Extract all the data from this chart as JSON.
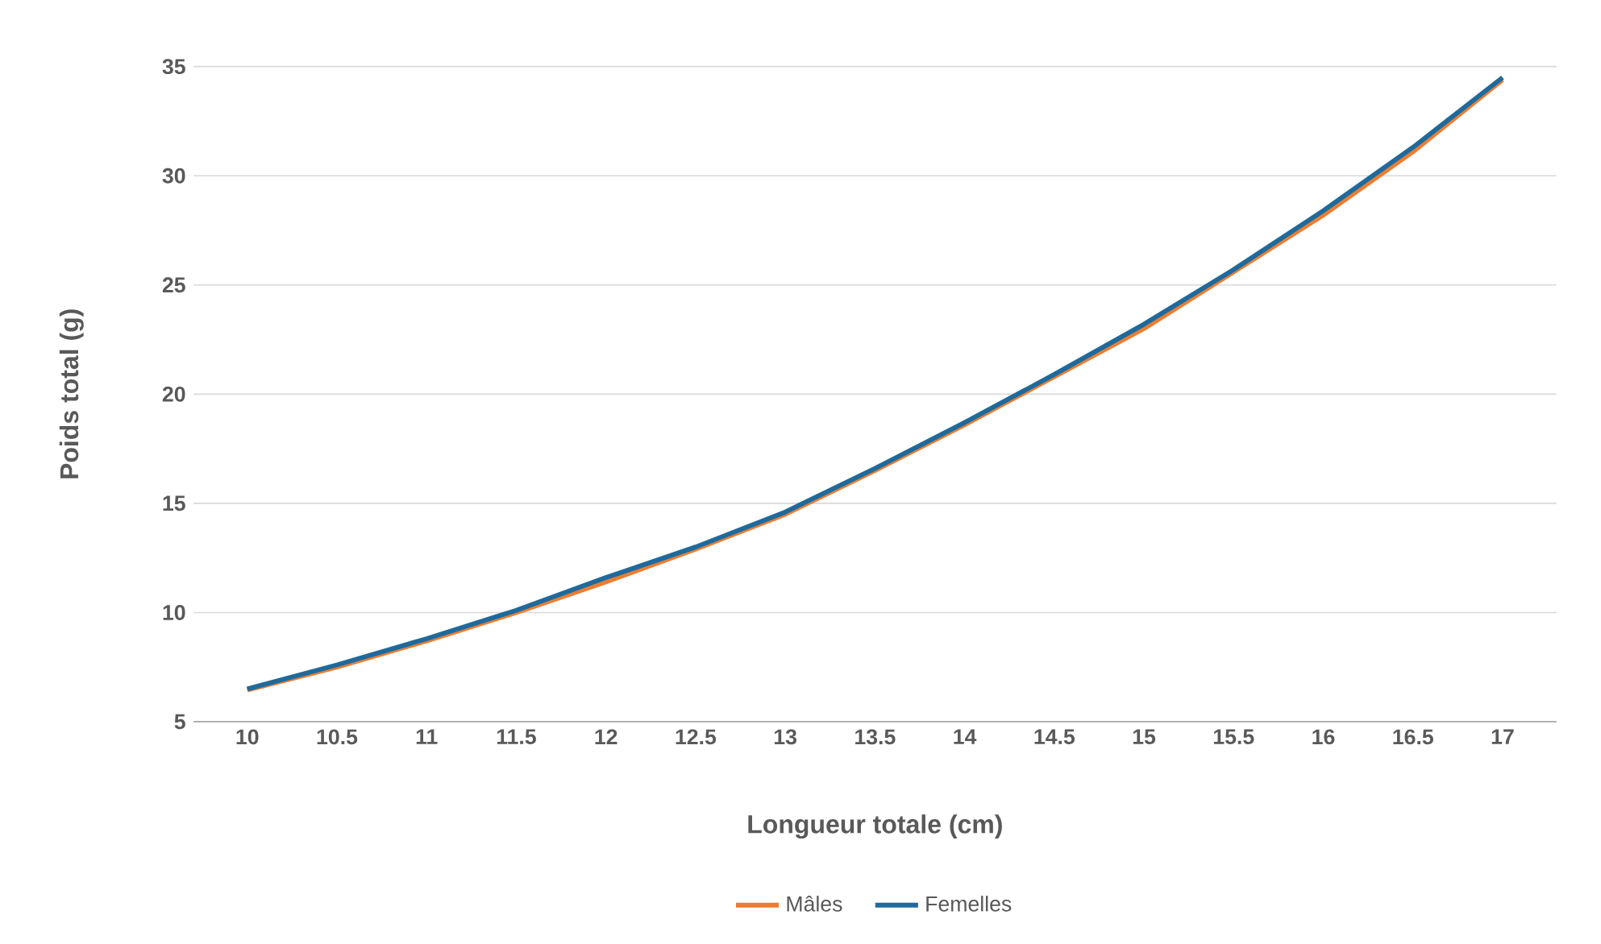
{
  "chart_data": {
    "type": "line",
    "xlabel": "Longueur totale (cm)",
    "ylabel": "Poids total (g)",
    "categories": [
      "10",
      "10.5",
      "11",
      "11.5",
      "12",
      "12.5",
      "13",
      "13.5",
      "14",
      "14.5",
      "15",
      "15.5",
      "16",
      "16.5",
      "17"
    ],
    "series": [
      {
        "name": "Mâles",
        "color": "#ed7d31",
        "values": [
          6.45,
          7.5,
          8.7,
          10.0,
          11.4,
          12.9,
          14.5,
          16.5,
          18.6,
          20.8,
          23.0,
          25.6,
          28.2,
          31.1,
          34.4
        ]
      },
      {
        "name": "Femelles",
        "color": "#1f6a9c",
        "values": [
          6.5,
          7.6,
          8.8,
          10.1,
          11.6,
          13.0,
          14.6,
          16.6,
          18.7,
          20.9,
          23.2,
          25.7,
          28.4,
          31.3,
          34.5
        ]
      }
    ],
    "ylim": [
      5,
      35
    ],
    "yticks": [
      5,
      10,
      15,
      20,
      25,
      30,
      35
    ],
    "grid": "y",
    "legend": "bottom",
    "marker": "none",
    "line_style": "solid"
  }
}
